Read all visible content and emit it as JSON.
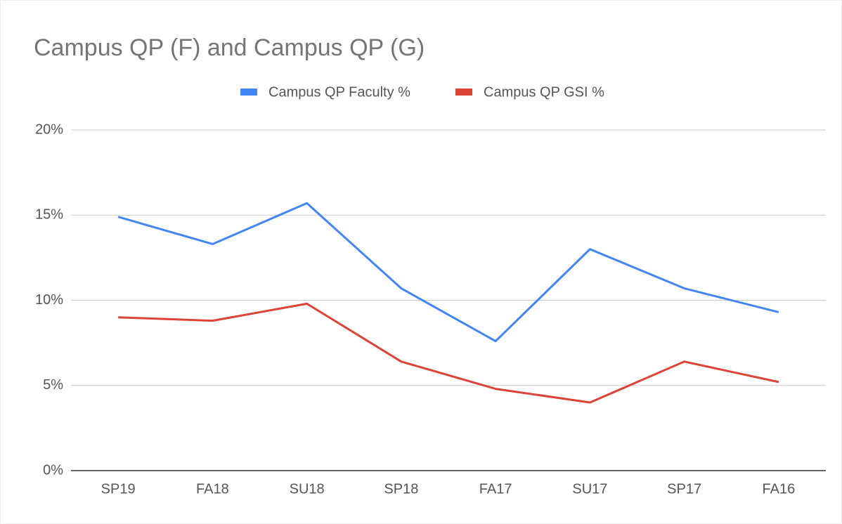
{
  "chart_data": {
    "type": "line",
    "title": "Campus QP (F) and Campus QP (G)",
    "categories": [
      "SP19",
      "FA18",
      "SU18",
      "SP18",
      "FA17",
      "SU17",
      "SP17",
      "FA16"
    ],
    "series": [
      {
        "name": "Campus QP Faculty %",
        "color": "#4285f4",
        "values": [
          14.9,
          13.3,
          15.7,
          10.7,
          7.6,
          13.0,
          10.7,
          9.3
        ]
      },
      {
        "name": "Campus QP GSI %",
        "color": "#db4437",
        "values": [
          9.0,
          8.8,
          9.8,
          6.4,
          4.8,
          4.0,
          6.4,
          5.2
        ]
      }
    ],
    "ylim": [
      0,
      20
    ],
    "yticks": [
      {
        "value": 0,
        "label": "0%"
      },
      {
        "value": 5,
        "label": "5%"
      },
      {
        "value": 10,
        "label": "10%"
      },
      {
        "value": 15,
        "label": "15%"
      },
      {
        "value": 20,
        "label": "20%"
      }
    ],
    "grid": true,
    "legend": "top"
  }
}
